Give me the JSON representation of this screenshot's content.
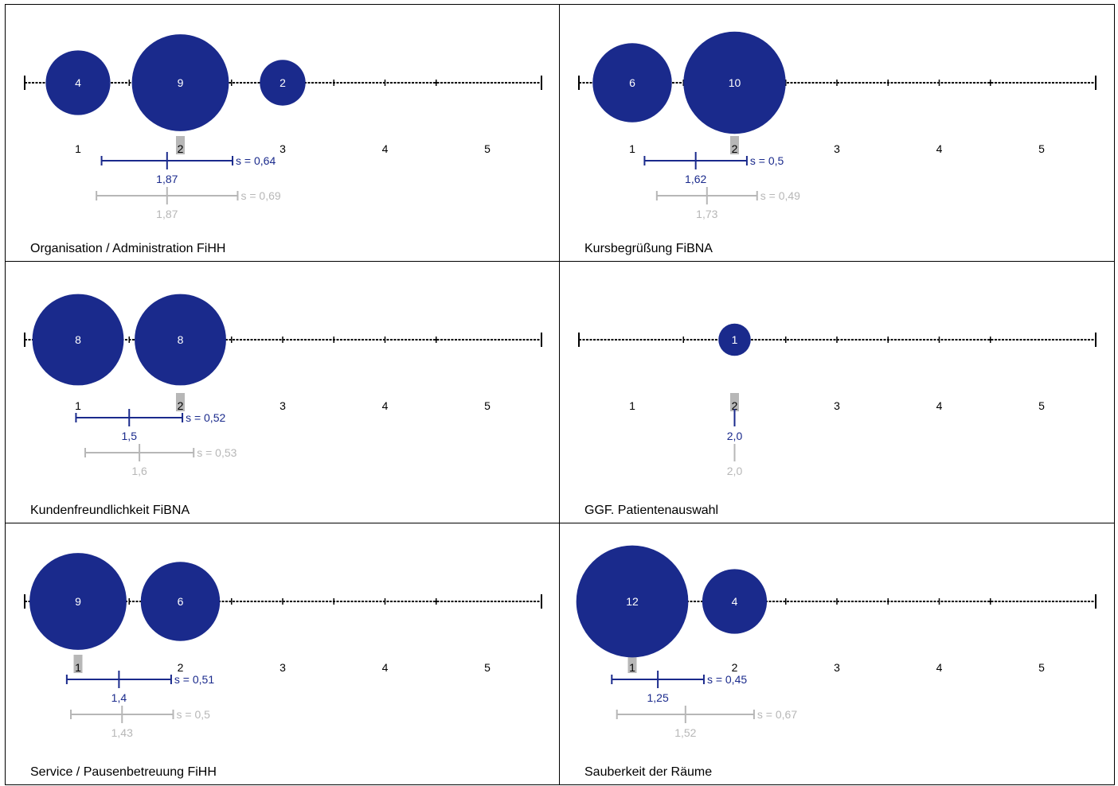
{
  "colors": {
    "bubble": "#1a2a8c",
    "current": "#1a2a8c",
    "comparison": "#b7b7b7",
    "median_highlight": "#b7b7b7",
    "axis": "#000000",
    "bubble_text": "#ffffff"
  },
  "chart_data": [
    {
      "type": "bubble",
      "title": "Organisation / Administration FiHH",
      "scale": [
        1,
        2,
        3,
        4,
        5
      ],
      "counts": [
        4,
        9,
        2,
        0,
        0
      ],
      "median": 2,
      "mean": 1.87,
      "mean_label": "1,87",
      "sd_label": "s = 0,64",
      "comparison_mean": 1.87,
      "comparison_mean_label": "1,87",
      "comparison_sd_label": "s = 0,69"
    },
    {
      "type": "bubble",
      "title": "Kursbegrüßung FiBNA",
      "scale": [
        1,
        2,
        3,
        4,
        5
      ],
      "counts": [
        6,
        10,
        0,
        0,
        0
      ],
      "median": 2,
      "mean": 1.62,
      "mean_label": "1,62",
      "sd_label": "s = 0,5",
      "comparison_mean": 1.73,
      "comparison_mean_label": "1,73",
      "comparison_sd_label": "s = 0,49"
    },
    {
      "type": "bubble",
      "title": "Kundenfreundlichkeit FiBNA",
      "scale": [
        1,
        2,
        3,
        4,
        5
      ],
      "counts": [
        8,
        8,
        0,
        0,
        0
      ],
      "median": 2,
      "mean": 1.5,
      "mean_label": "1,5",
      "sd_label": "s = 0,52",
      "comparison_mean": 1.6,
      "comparison_mean_label": "1,6",
      "comparison_sd_label": "s = 0,53"
    },
    {
      "type": "bubble",
      "title": "GGF. Patientenauswahl",
      "scale": [
        1,
        2,
        3,
        4,
        5
      ],
      "counts": [
        0,
        1,
        0,
        0,
        0
      ],
      "median": 2,
      "mean": 2.0,
      "mean_label": "2,0",
      "sd_label": "",
      "comparison_mean": 2.0,
      "comparison_mean_label": "2,0",
      "comparison_sd_label": ""
    },
    {
      "type": "bubble",
      "title": "Service / Pausenbetreuung FiHH",
      "scale": [
        1,
        2,
        3,
        4,
        5
      ],
      "counts": [
        9,
        6,
        0,
        0,
        0
      ],
      "median": 1,
      "mean": 1.4,
      "mean_label": "1,4",
      "sd_label": "s = 0,51",
      "comparison_mean": 1.43,
      "comparison_mean_label": "1,43",
      "comparison_sd_label": "s = 0,5"
    },
    {
      "type": "bubble",
      "title": "Sauberkeit der Räume",
      "scale": [
        1,
        2,
        3,
        4,
        5
      ],
      "counts": [
        12,
        4,
        0,
        0,
        0
      ],
      "median": 1,
      "mean": 1.25,
      "mean_label": "1,25",
      "sd_label": "s = 0,45",
      "comparison_mean": 1.52,
      "comparison_mean_label": "1,52",
      "comparison_sd_label": "s = 0,67"
    }
  ]
}
